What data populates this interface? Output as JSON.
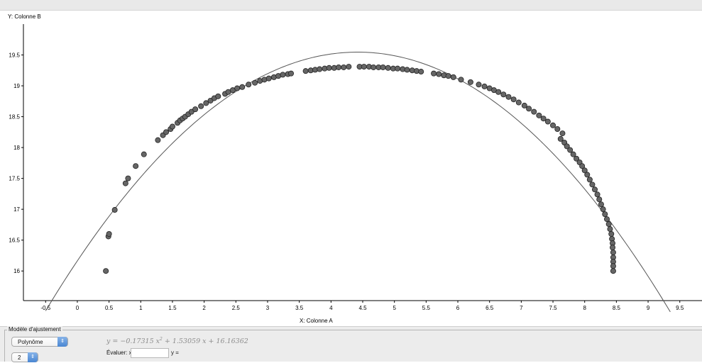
{
  "chart_data": {
    "type": "scatter",
    "xlabel": "X:  Colonne A",
    "ylabel": "Y:  Colonne B",
    "xlim": [
      -0.85,
      9.85
    ],
    "ylim": [
      15.52,
      20.0
    ],
    "x_ticks": [
      "-0.5",
      "0",
      "0.5",
      "1",
      "1.5",
      "2",
      "2.5",
      "3",
      "3.5",
      "4",
      "4.5",
      "5",
      "5.5",
      "6",
      "6.5",
      "7",
      "7.5",
      "8",
      "8.5",
      "9",
      "9.5"
    ],
    "y_ticks": [
      "16",
      "16.5",
      "17",
      "17.5",
      "18",
      "18.5",
      "19",
      "19.5"
    ],
    "grid": false,
    "series": [
      {
        "kind": "points",
        "color": "#666666",
        "points": [
          [
            0.45,
            16.0
          ],
          [
            0.49,
            16.56
          ],
          [
            0.5,
            16.6
          ],
          [
            0.59,
            16.99
          ],
          [
            0.76,
            17.42
          ],
          [
            0.8,
            17.5
          ],
          [
            0.92,
            17.7
          ],
          [
            1.05,
            17.89
          ],
          [
            1.27,
            18.12
          ],
          [
            1.35,
            18.2
          ],
          [
            1.4,
            18.25
          ],
          [
            1.47,
            18.3
          ],
          [
            1.5,
            18.34
          ],
          [
            1.58,
            18.4
          ],
          [
            1.62,
            18.44
          ],
          [
            1.66,
            18.47
          ],
          [
            1.7,
            18.5
          ],
          [
            1.75,
            18.54
          ],
          [
            1.8,
            18.58
          ],
          [
            1.86,
            18.62
          ],
          [
            1.95,
            18.67
          ],
          [
            2.03,
            18.72
          ],
          [
            2.1,
            18.76
          ],
          [
            2.16,
            18.8
          ],
          [
            2.22,
            18.83
          ],
          [
            2.33,
            18.87
          ],
          [
            2.38,
            18.9
          ],
          [
            2.45,
            18.93
          ],
          [
            2.52,
            18.96
          ],
          [
            2.6,
            18.98
          ],
          [
            2.7,
            19.02
          ],
          [
            2.8,
            19.05
          ],
          [
            2.88,
            19.08
          ],
          [
            2.95,
            19.1
          ],
          [
            3.02,
            19.12
          ],
          [
            3.1,
            19.14
          ],
          [
            3.17,
            19.16
          ],
          [
            3.24,
            19.18
          ],
          [
            3.32,
            19.19
          ],
          [
            3.37,
            19.2
          ],
          [
            3.6,
            19.24
          ],
          [
            3.68,
            19.25
          ],
          [
            3.75,
            19.26
          ],
          [
            3.82,
            19.27
          ],
          [
            3.9,
            19.28
          ],
          [
            3.97,
            19.29
          ],
          [
            4.05,
            19.29
          ],
          [
            4.12,
            19.3
          ],
          [
            4.2,
            19.3
          ],
          [
            4.28,
            19.31
          ],
          [
            4.45,
            19.31
          ],
          [
            4.52,
            19.31
          ],
          [
            4.6,
            19.31
          ],
          [
            4.67,
            19.3
          ],
          [
            4.75,
            19.3
          ],
          [
            4.82,
            19.3
          ],
          [
            4.9,
            19.29
          ],
          [
            4.98,
            19.28
          ],
          [
            5.05,
            19.28
          ],
          [
            5.13,
            19.27
          ],
          [
            5.2,
            19.26
          ],
          [
            5.28,
            19.25
          ],
          [
            5.35,
            19.24
          ],
          [
            5.42,
            19.23
          ],
          [
            5.62,
            19.2
          ],
          [
            5.7,
            19.19
          ],
          [
            5.78,
            19.17
          ],
          [
            5.85,
            19.16
          ],
          [
            5.93,
            19.14
          ],
          [
            6.05,
            19.1
          ],
          [
            6.2,
            19.06
          ],
          [
            6.33,
            19.02
          ],
          [
            6.42,
            18.99
          ],
          [
            6.5,
            18.96
          ],
          [
            6.57,
            18.93
          ],
          [
            6.64,
            18.9
          ],
          [
            6.72,
            18.86
          ],
          [
            6.8,
            18.82
          ],
          [
            6.88,
            18.78
          ],
          [
            6.96,
            18.73
          ],
          [
            7.05,
            18.68
          ],
          [
            7.12,
            18.63
          ],
          [
            7.2,
            18.58
          ],
          [
            7.28,
            18.52
          ],
          [
            7.35,
            18.47
          ],
          [
            7.42,
            18.42
          ],
          [
            7.5,
            18.36
          ],
          [
            7.57,
            18.3
          ],
          [
            7.65,
            18.23
          ],
          [
            7.62,
            18.14
          ],
          [
            7.68,
            18.08
          ],
          [
            7.72,
            18.02
          ],
          [
            7.77,
            17.96
          ],
          [
            7.82,
            17.89
          ],
          [
            7.87,
            17.82
          ],
          [
            7.92,
            17.76
          ],
          [
            7.96,
            17.7
          ],
          [
            8.0,
            17.63
          ],
          [
            8.04,
            17.56
          ],
          [
            8.08,
            17.48
          ],
          [
            8.12,
            17.4
          ],
          [
            8.16,
            17.32
          ],
          [
            8.2,
            17.24
          ],
          [
            8.23,
            17.16
          ],
          [
            8.26,
            17.08
          ],
          [
            8.29,
            17.0
          ],
          [
            8.32,
            16.92
          ],
          [
            8.35,
            16.84
          ],
          [
            8.38,
            16.76
          ],
          [
            8.4,
            16.68
          ],
          [
            8.42,
            16.6
          ],
          [
            8.43,
            16.52
          ],
          [
            8.44,
            16.45
          ],
          [
            8.44,
            16.38
          ],
          [
            8.45,
            16.3
          ],
          [
            8.45,
            16.22
          ],
          [
            8.45,
            16.15
          ],
          [
            8.45,
            16.08
          ],
          [
            8.45,
            16.0
          ]
        ]
      },
      {
        "kind": "fit-curve",
        "color": "#555555",
        "coefficients": [
          -0.17315,
          1.53059,
          16.16362
        ],
        "x_range": [
          -0.6,
          9.6
        ]
      }
    ]
  },
  "panel": {
    "legend": "Modèle d'ajustement",
    "model_select": "Polynôme",
    "degree_select": "2",
    "evaluate_label": "Évaluer:  x =",
    "x_value": "",
    "y_label": "y ="
  },
  "equation": {
    "prefix": "y = −0.17315 x",
    "exponent": "2",
    "suffix": " + 1.53059 x + 16.16362"
  },
  "icons": {
    "select_arrow": "updown-arrow-icon"
  }
}
